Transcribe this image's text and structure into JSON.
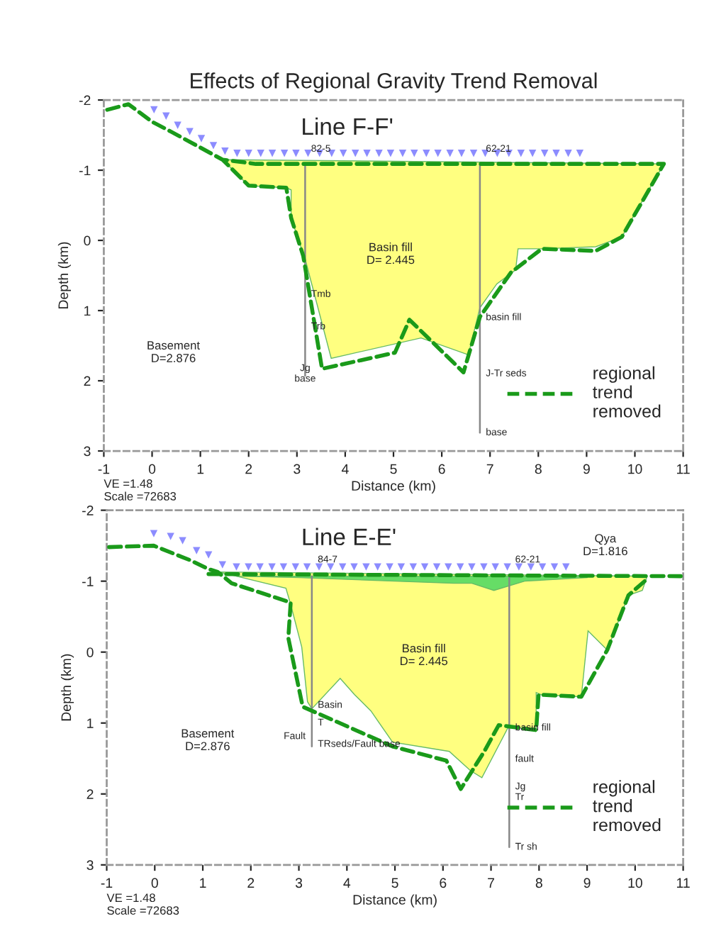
{
  "chart_data": [
    {
      "type": "area",
      "title": "Effects of Regional Gravity Trend Removal",
      "subtitle": "Line F-F'",
      "xlabel": "Distance (km)",
      "ylabel": "Depth (km)",
      "xlim": [
        -1,
        11
      ],
      "xticks": [
        -1,
        0,
        1,
        2,
        3,
        4,
        5,
        6,
        7,
        8,
        9,
        10,
        11
      ],
      "ylim": [
        3,
        -2
      ],
      "yticks": [
        -2,
        -1,
        0,
        1,
        2,
        3
      ],
      "grid": false,
      "legend": "bottom right",
      "series": [
        {
          "color": "#ffff80",
          "x": [
            1.46,
            10.6,
            10.0,
            9.73,
            9.19,
            8.07,
            7.58,
            7.53,
            7.14,
            6.79,
            6.55,
            5.57,
            3.71,
            3.18,
            2.88,
            2.88,
            2.78,
            2.0
          ],
          "values": [
            -1.15,
            -1.09,
            -0.38,
            -0.05,
            0.09,
            0.12,
            0.12,
            0.42,
            0.62,
            0.96,
            1.63,
            1.39,
            1.68,
            0.29,
            -0.32,
            -0.72,
            -0.75,
            -0.78
          ]
        },
        {
          "type": "line",
          "color": "#888888",
          "line_style": "solid",
          "x": [
            3.17,
            3.17
          ],
          "values": [
            -1.09,
            1.93
          ]
        },
        {
          "type": "line",
          "color": "#888888",
          "line_style": "solid",
          "x": [
            6.79,
            6.79
          ],
          "values": [
            -1.09,
            2.74
          ]
        },
        {
          "type": "line",
          "name": "regional\ntrend\nremoved",
          "color": "#1a9a1a",
          "line_style": "dashed",
          "x": [
            -0.93,
            -0.49,
            0.0,
            0.39,
            1.46,
            2.15,
            10.6,
            9.73,
            9.19,
            8.07,
            7.43,
            6.79,
            6.45,
            5.33,
            5.03,
            3.52,
            3.13,
            2.88,
            2.78,
            2.0,
            1.46
          ],
          "values": [
            -1.86,
            -1.94,
            -1.69,
            -1.55,
            -1.15,
            -1.09,
            -1.09,
            -0.05,
            0.15,
            0.12,
            0.46,
            1.09,
            1.88,
            1.13,
            1.6,
            1.83,
            0.22,
            -0.32,
            -0.75,
            -0.78,
            -1.15
          ]
        },
        {
          "type": "scatter",
          "color": "#8c8cff",
          "marker": "triangle",
          "x": [
            0.04,
            0.29,
            0.53,
            0.78,
            1.02,
            1.27,
            1.51,
            1.76,
            2.0,
            2.25,
            2.49,
            2.74,
            2.98,
            3.23,
            3.47,
            3.72,
            3.96,
            4.21,
            4.45,
            4.7,
            4.94,
            5.19,
            5.43,
            5.68,
            5.92,
            6.17,
            6.41,
            6.66,
            6.9,
            7.15,
            7.39,
            7.64,
            7.88,
            8.13,
            8.37,
            8.62,
            8.86
          ],
          "values": [
            -1.86,
            -1.77,
            -1.64,
            -1.55,
            -1.45,
            -1.35,
            -1.27,
            -1.24,
            -1.24,
            -1.24,
            -1.24,
            -1.24,
            -1.24,
            -1.24,
            -1.24,
            -1.24,
            -1.24,
            -1.24,
            -1.24,
            -1.24,
            -1.24,
            -1.24,
            -1.24,
            -1.24,
            -1.24,
            -1.24,
            -1.24,
            -1.24,
            -1.24,
            -1.24,
            -1.24,
            -1.24,
            -1.24,
            -1.24,
            -1.24,
            -1.24,
            -1.24
          ]
        }
      ],
      "annotations": [
        {
          "text": "82-5",
          "x": 3.17,
          "y": -1.3
        },
        {
          "text": "62-21",
          "x": 6.79,
          "y": -1.3
        },
        "Basin fill\nD= 2.445",
        "Basement\nD=2.876",
        {
          "text": "Tmb",
          "x": 3.17,
          "y": 0.77
        },
        {
          "text": "Trb",
          "x": 3.17,
          "y": 1.23
        },
        {
          "text": "Jg\nbase",
          "x": 3.17,
          "y": 1.9
        },
        {
          "text": "basin fill",
          "x": 6.79,
          "y": 1.1
        },
        {
          "text": "J-Tr seds",
          "x": 6.79,
          "y": 1.9
        },
        {
          "text": "base",
          "x": 6.79,
          "y": 2.74
        },
        "VE =1.48\nScale =72683"
      ]
    },
    {
      "type": "area",
      "subtitle": "Line E-E'",
      "xlabel": "Distance (km)",
      "ylabel": "Depth (km)",
      "xlim": [
        -1,
        11
      ],
      "xticks": [
        -1,
        0,
        1,
        2,
        3,
        4,
        5,
        6,
        7,
        8,
        9,
        10,
        11
      ],
      "ylim": [
        3,
        -2
      ],
      "yticks": [
        -2,
        -1,
        0,
        1,
        2,
        3
      ],
      "grid": false,
      "legend": "bottom right",
      "series": [
        {
          "color": "#ffff80",
          "x": [
            1.31,
            10.25,
            10.15,
            9.86,
            9.42,
            9.02,
            8.88,
            8.04,
            7.94,
            7.94,
            7.35,
            6.81,
            6.57,
            6.13,
            4.95,
            4.5,
            4.16,
            3.86,
            3.27,
            3.18,
            3.06,
            2.83,
            2.73,
            1.7
          ],
          "values": [
            -1.13,
            -1.07,
            -0.87,
            -0.8,
            -0.03,
            -0.3,
            0.63,
            0.6,
            0.57,
            1.07,
            1.07,
            1.77,
            1.67,
            1.4,
            1.27,
            0.83,
            0.6,
            0.37,
            0.8,
            0.7,
            -0.07,
            -0.67,
            -0.9,
            -1.07
          ]
        },
        {
          "color": "#66dd66",
          "x": [
            1.7,
            9.0,
            9.0,
            7.7,
            7.06,
            6.6,
            6.22,
            5.0,
            3.0
          ],
          "values": [
            -1.07,
            -1.07,
            -1.05,
            -1.0,
            -0.87,
            -0.97,
            -0.97,
            -1.0,
            -1.05
          ]
        },
        {
          "type": "line",
          "color": "#888888",
          "line_style": "solid",
          "x": [
            3.27,
            3.27
          ],
          "values": [
            -1.07,
            1.33
          ]
        },
        {
          "type": "line",
          "color": "#888888",
          "line_style": "solid",
          "x": [
            7.38,
            7.38
          ],
          "values": [
            -1.07,
            2.75
          ]
        },
        {
          "type": "line",
          "name": "regional\ntrend\nremoved",
          "color": "#1a9a1a",
          "line_style": "dashed",
          "x": [
            -0.95,
            -0.02,
            0.72,
            1.12,
            1.31,
            1.6,
            2.83,
            2.78,
            3.08,
            4.95,
            6.07,
            6.37,
            6.86,
            7.16,
            7.94,
            7.99,
            8.88,
            9.42,
            9.86,
            10.25
          ],
          "values": [
            -1.48,
            -1.5,
            -1.3,
            -1.17,
            -1.13,
            -0.97,
            -0.7,
            -0.2,
            0.77,
            1.33,
            1.53,
            1.93,
            1.4,
            1.03,
            1.1,
            0.6,
            0.63,
            -0.03,
            -0.8,
            -1.03
          ]
        },
        {
          "type": "line",
          "color": "#1a9a1a",
          "line_style": "dashed",
          "x": [
            1.12,
            10.95
          ],
          "values": [
            -1.1,
            -1.07
          ]
        },
        {
          "type": "scatter",
          "color": "#8c8cff",
          "marker": "triangle",
          "x": [
            -0.02,
            0.33,
            0.58,
            0.87,
            1.12,
            1.41,
            1.7,
            1.95,
            2.19,
            2.44,
            2.68,
            2.93,
            3.17,
            3.42,
            3.66,
            3.91,
            4.15,
            4.4,
            4.64,
            4.89,
            5.13,
            5.38,
            5.62,
            5.87,
            6.11,
            6.36,
            6.6,
            6.85,
            7.09,
            7.34,
            7.58,
            7.83,
            8.07,
            8.32,
            8.56
          ],
          "values": [
            -1.67,
            -1.63,
            -1.57,
            -1.43,
            -1.37,
            -1.23,
            -1.2,
            -1.2,
            -1.2,
            -1.2,
            -1.2,
            -1.2,
            -1.2,
            -1.2,
            -1.2,
            -1.2,
            -1.2,
            -1.2,
            -1.2,
            -1.2,
            -1.2,
            -1.2,
            -1.2,
            -1.2,
            -1.2,
            -1.2,
            -1.2,
            -1.2,
            -1.2,
            -1.2,
            -1.2,
            -1.2,
            -1.2,
            -1.2,
            -1.2
          ]
        }
      ],
      "annotations": [
        {
          "text": "84-7",
          "x": 3.27,
          "y": -1.3
        },
        {
          "text": "62-21",
          "x": 7.38,
          "y": -1.3
        },
        "Qya\nD=1.816",
        "Basin fill\nD= 2.445",
        "Basement\nD=2.876",
        "Fault",
        {
          "text": "Basin",
          "x": 3.27,
          "y": 0.75
        },
        {
          "text": "T",
          "x": 3.27,
          "y": 1.0
        },
        {
          "text": "TRseds/Fault base",
          "x": 3.27,
          "y": 1.3
        },
        {
          "text": "basin fill",
          "x": 7.38,
          "y": 1.07
        },
        {
          "text": "fault",
          "x": 7.38,
          "y": 1.51
        },
        {
          "text": "Jg",
          "x": 7.38,
          "y": 1.9
        },
        {
          "text": "Tr",
          "x": 7.38,
          "y": 2.05
        },
        {
          "text": "Tr sh",
          "x": 7.38,
          "y": 2.75
        },
        "VE =1.48\nScale =72683"
      ]
    }
  ]
}
